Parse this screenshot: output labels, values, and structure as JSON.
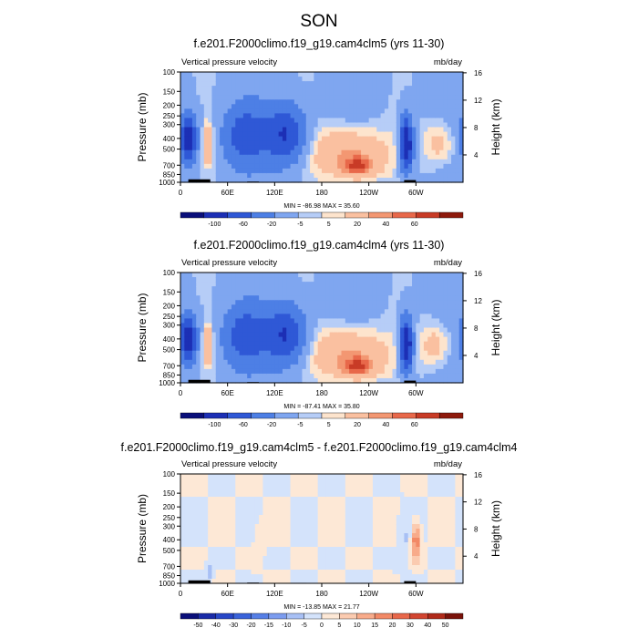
{
  "figure": {
    "title": "SON"
  },
  "colors": {
    "cbar12": [
      "#0a0f7a",
      "#1c2fb5",
      "#2f58d6",
      "#4d7fe5",
      "#7fa6f0",
      "#b6cdf7",
      "#fde4cd",
      "#fac0a0",
      "#f39772",
      "#e8684a",
      "#c83b26",
      "#8e1a0c"
    ],
    "cbar16": [
      "#0a0f7a",
      "#1a2ba8",
      "#2747c7",
      "#3a63da",
      "#567fe6",
      "#7c9cef",
      "#a8c0f5",
      "#d4e3fb",
      "#fde8d6",
      "#fbcbb0",
      "#f8ab8a",
      "#f28966",
      "#e8674a",
      "#d24530",
      "#b02a1a",
      "#7a120a"
    ],
    "orography": "#000000"
  },
  "axes": {
    "ylabel": "Pressure (mb)",
    "y2label": "Height (km)",
    "pressure_ticks": [
      100,
      150,
      200,
      250,
      300,
      400,
      500,
      700,
      850,
      1000
    ],
    "height_ticks": [
      4,
      8,
      12,
      16
    ],
    "lon_ticks": [
      {
        "lon": 0,
        "label": "0"
      },
      {
        "lon": 60,
        "label": "60E"
      },
      {
        "lon": 120,
        "label": "120E"
      },
      {
        "lon": 180,
        "label": "180"
      },
      {
        "lon": 240,
        "label": "120W"
      },
      {
        "lon": 300,
        "label": "60W"
      }
    ],
    "xlim": [
      0,
      360
    ],
    "ylim": [
      100,
      1000
    ],
    "y_scale": "log"
  },
  "panels": [
    {
      "title": "f.e201.F2000climo.f19_g19.cam4clm5 (yrs 11-30)",
      "left": "Vertical pressure velocity",
      "right": "mb/day",
      "stats": "MIN = -86.98  MAX =  35.60",
      "cbar_labels": [
        "-100",
        "-60",
        "-20",
        "-5",
        "5",
        "20",
        "40",
        "60"
      ],
      "cbar_levels": 12
    },
    {
      "title": "f.e201.F2000climo.f19_g19.cam4clm4 (yrs 11-30)",
      "left": "Vertical pressure velocity",
      "right": "mb/day",
      "stats": "MIN = -87.41  MAX =  35.80",
      "cbar_labels": [
        "-100",
        "-60",
        "-20",
        "-5",
        "5",
        "20",
        "40",
        "60"
      ],
      "cbar_levels": 12
    },
    {
      "title": "f.e201.F2000climo.f19_g19.cam4clm5 - f.e201.F2000climo.f19_g19.cam4clm4",
      "left": "Vertical pressure velocity",
      "right": "mb/day",
      "stats": "MIN = -13.85  MAX =  21.77",
      "cbar_labels": [
        "-50",
        "-40",
        "-30",
        "-20",
        "-15",
        "-10",
        "-5",
        "0",
        "5",
        "10",
        "15",
        "20",
        "30",
        "40",
        "50"
      ],
      "cbar_levels": 16
    }
  ],
  "chart_data": [
    {
      "type": "heatmap",
      "title": "f.e201.F2000climo.f19_g19.cam4clm5 (yrs 11-30)",
      "variable": "Vertical pressure velocity",
      "units": "mb/day",
      "min": -86.98,
      "max": 35.6,
      "xlim": [
        0,
        360
      ],
      "ylim": [
        100,
        1000
      ],
      "levels": [
        -100,
        -80,
        -60,
        -40,
        -20,
        -10,
        -5,
        0,
        5,
        10,
        20,
        30,
        40,
        50,
        60
      ],
      "features": [
        {
          "lon": 10,
          "p": 400,
          "value": -70,
          "rx": 8,
          "rp": 0.35
        },
        {
          "lon": 35,
          "p": 450,
          "value": 30,
          "rx": 5,
          "rp": 0.3
        },
        {
          "lon": 82,
          "p": 380,
          "value": -45,
          "rx": 20,
          "rp": 0.45
        },
        {
          "lon": 135,
          "p": 370,
          "value": -55,
          "rx": 18,
          "rp": 0.45
        },
        {
          "lon": 215,
          "p": 550,
          "value": 30,
          "rx": 35,
          "rp": 0.4
        },
        {
          "lon": 226,
          "p": 720,
          "value": 35,
          "rx": 14,
          "rp": 0.15
        },
        {
          "lon": 288,
          "p": 450,
          "value": -80,
          "rx": 6,
          "rp": 0.4
        },
        {
          "lon": 330,
          "p": 450,
          "value": 18,
          "rx": 15,
          "rp": 0.35
        }
      ]
    },
    {
      "type": "heatmap",
      "title": "f.e201.F2000climo.f19_g19.cam4clm4 (yrs 11-30)",
      "variable": "Vertical pressure velocity",
      "units": "mb/day",
      "min": -87.41,
      "max": 35.8,
      "xlim": [
        0,
        360
      ],
      "ylim": [
        100,
        1000
      ],
      "levels": [
        -100,
        -80,
        -60,
        -40,
        -20,
        -10,
        -5,
        0,
        5,
        10,
        20,
        30,
        40,
        50,
        60
      ],
      "features": [
        {
          "lon": 10,
          "p": 400,
          "value": -72,
          "rx": 8,
          "rp": 0.35
        },
        {
          "lon": 35,
          "p": 450,
          "value": 28,
          "rx": 5,
          "rp": 0.3
        },
        {
          "lon": 82,
          "p": 380,
          "value": -45,
          "rx": 20,
          "rp": 0.45
        },
        {
          "lon": 135,
          "p": 370,
          "value": -55,
          "rx": 18,
          "rp": 0.45
        },
        {
          "lon": 215,
          "p": 550,
          "value": 30,
          "rx": 35,
          "rp": 0.4
        },
        {
          "lon": 226,
          "p": 720,
          "value": 35,
          "rx": 14,
          "rp": 0.15
        },
        {
          "lon": 288,
          "p": 450,
          "value": -80,
          "rx": 6,
          "rp": 0.4
        },
        {
          "lon": 325,
          "p": 450,
          "value": 18,
          "rx": 15,
          "rp": 0.35
        }
      ]
    },
    {
      "type": "heatmap",
      "title": "f.e201.F2000climo.f19_g19.cam4clm5 - f.e201.F2000climo.f19_g19.cam4clm4",
      "variable": "Vertical pressure velocity",
      "units": "mb/day",
      "min": -13.85,
      "max": 21.77,
      "xlim": [
        0,
        360
      ],
      "ylim": [
        100,
        1000
      ],
      "levels": [
        -50,
        -40,
        -30,
        -20,
        -15,
        -10,
        -5,
        0,
        5,
        10,
        15,
        20,
        30,
        40,
        50
      ],
      "features": [
        {
          "lon": 300,
          "p": 400,
          "value": 21,
          "rx": 4,
          "rp": 0.25
        },
        {
          "lon": 100,
          "p": 420,
          "value": 5,
          "rx": 5,
          "rp": 0.25
        },
        {
          "lon": 37,
          "p": 800,
          "value": -10,
          "rx": 3,
          "rp": 0.12
        },
        {
          "lon": 285,
          "p": 450,
          "value": -5,
          "rx": 5,
          "rp": 0.35
        }
      ]
    }
  ]
}
